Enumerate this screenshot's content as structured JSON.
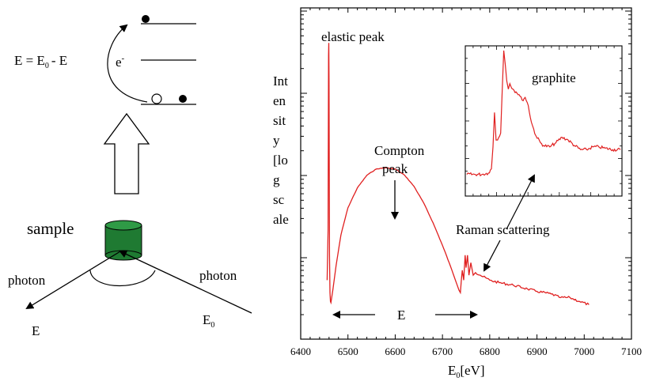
{
  "diagram": {
    "energy_eq_main": "E = E",
    "energy_eq_sub": "0",
    "energy_eq_tail": "- E",
    "electron_label": "e",
    "electron_sup": "-",
    "sample_label": "sample",
    "photon_out_label": "photon",
    "photon_out_energy": "E",
    "photon_in_label": "photon",
    "photon_in_energy": "E",
    "photon_in_energy_sub": "0",
    "sample_color": "#1f7a32"
  },
  "chart_data": {
    "type": "line",
    "title": "",
    "xlabel": "E",
    "xlabel_sub": "0",
    "xlabel_unit": "[eV]",
    "ylabel_lines": [
      "Int",
      "en",
      "sit",
      "y",
      "[lo",
      "g",
      "sc",
      "ale"
    ],
    "xlim": [
      6400,
      7100
    ],
    "xticks": [
      6400,
      6500,
      6600,
      6700,
      6800,
      6900,
      7000,
      7100
    ],
    "y_log_scale": true,
    "series_color": "#e02020",
    "annotations": {
      "elastic": "elastic peak",
      "compton_top": "Compton",
      "compton_bottom": "peak",
      "raman": "Raman scattering",
      "energy_loss": "E"
    },
    "series": [
      {
        "x": [
          6456,
          6458,
          6459,
          6459.5,
          6460,
          6460.5,
          6461,
          6462,
          6463,
          6464,
          6468,
          6475,
          6485,
          6500,
          6520,
          6540,
          6560,
          6580,
          6600,
          6620,
          6640,
          6660,
          6680,
          6700,
          6720,
          6735,
          6738,
          6740,
          6742,
          6745,
          6748,
          6750,
          6753,
          6756,
          6760,
          6765,
          6770,
          6780,
          6800,
          6820,
          6850,
          6880,
          6900,
          6930,
          6950,
          6970,
          6990,
          7010
        ],
        "y": [
          0.1,
          0.3,
          1.0,
          1.05,
          0.9,
          0.55,
          0.2,
          0.05,
          0.015,
          0.01,
          0.06,
          0.16,
          0.28,
          0.39,
          0.47,
          0.52,
          0.545,
          0.55,
          0.545,
          0.52,
          0.475,
          0.41,
          0.33,
          0.24,
          0.14,
          0.06,
          0.05,
          0.1,
          0.14,
          0.1,
          0.2,
          0.15,
          0.2,
          0.12,
          0.17,
          0.12,
          0.13,
          0.12,
          0.1,
          0.09,
          0.08,
          0.065,
          0.055,
          0.045,
          0.03,
          0.03,
          0.015,
          0.002
        ]
      }
    ],
    "inset": {
      "label": "graphite",
      "series": [
        {
          "x": [
            0,
            0.05,
            0.1,
            0.14,
            0.16,
            0.17,
            0.18,
            0.19,
            0.2,
            0.22,
            0.23,
            0.24,
            0.25,
            0.26,
            0.27,
            0.28,
            0.3,
            0.32,
            0.34,
            0.36,
            0.38,
            0.4,
            0.42,
            0.45,
            0.48,
            0.5,
            0.54,
            0.58,
            0.62,
            0.66,
            0.7,
            0.74,
            0.78,
            0.82,
            0.86,
            0.9,
            0.95,
            1.0
          ],
          "y": [
            0.1,
            0.1,
            0.1,
            0.11,
            0.14,
            0.3,
            0.55,
            0.35,
            0.35,
            0.4,
            0.7,
            1.0,
            0.9,
            0.78,
            0.72,
            0.76,
            0.72,
            0.7,
            0.68,
            0.64,
            0.66,
            0.6,
            0.48,
            0.38,
            0.33,
            0.31,
            0.3,
            0.33,
            0.37,
            0.35,
            0.31,
            0.28,
            0.28,
            0.3,
            0.3,
            0.29,
            0.28,
            0.28
          ]
        }
      ]
    }
  }
}
